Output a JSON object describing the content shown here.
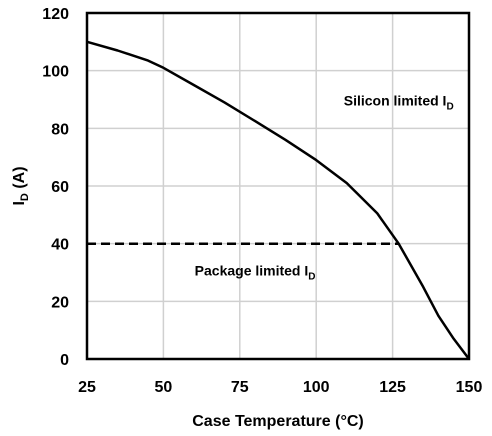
{
  "chart_data": {
    "type": "line",
    "title": "",
    "xlabel": "Case Temperature (°C)",
    "ylabel": {
      "main": "I",
      "sub": "D",
      "rest": " (A)"
    },
    "xlim": [
      25,
      150
    ],
    "ylim": [
      0,
      120
    ],
    "x_ticks": [
      25,
      50,
      75,
      100,
      125,
      150
    ],
    "y_ticks": [
      0,
      20,
      40,
      60,
      80,
      100,
      120
    ],
    "grid": true,
    "series": [
      {
        "style": "solid",
        "color": "#000000",
        "x": [
          25,
          35,
          45,
          50,
          60,
          70,
          80,
          90,
          100,
          110,
          120,
          127,
          135,
          140,
          145,
          150
        ],
        "y": [
          110,
          107,
          103.5,
          101,
          95,
          89,
          82.5,
          76,
          69,
          61,
          50.5,
          40,
          25,
          15,
          7,
          0
        ]
      },
      {
        "style": "dashed",
        "color": "#000000",
        "x": [
          25,
          127
        ],
        "y": [
          40,
          40
        ]
      }
    ],
    "annotations": [
      {
        "main": "Silicon limited I",
        "sub": "D",
        "x": 127,
        "y": 88
      },
      {
        "main": "Package limited I",
        "sub": "D",
        "x": 80,
        "y": 29
      }
    ]
  }
}
